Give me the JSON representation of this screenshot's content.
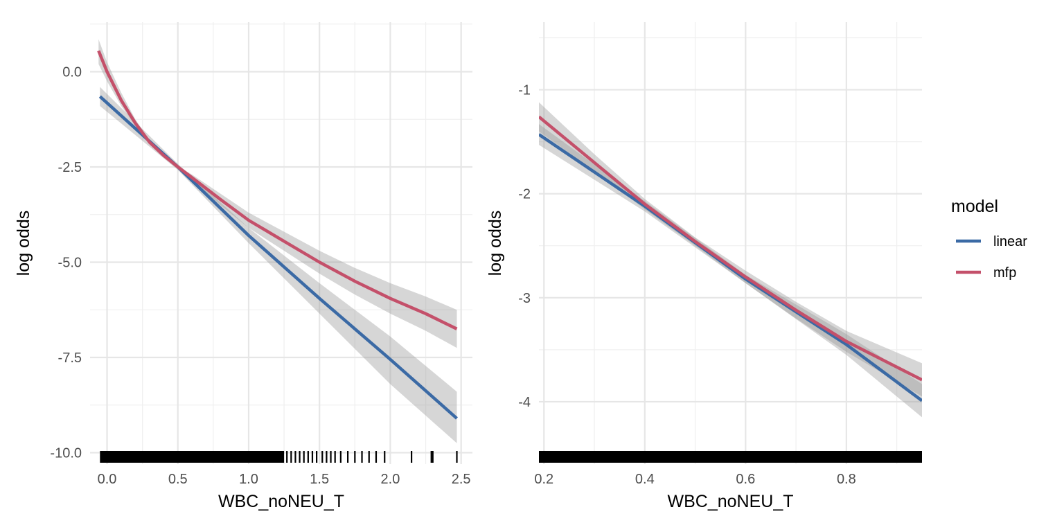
{
  "colors": {
    "linear": "#3b6aa5",
    "mfp": "#c4506a",
    "ribbon": "#999999",
    "rug": "#000000"
  },
  "legend": {
    "title": "model",
    "items": [
      {
        "label": "linear",
        "color": "#3b6aa5"
      },
      {
        "label": "mfp",
        "color": "#c4506a"
      }
    ]
  },
  "chart_data": [
    {
      "type": "line",
      "title": "",
      "xlabel": "WBC_noNEU_T",
      "ylabel": "log odds",
      "xlim": [
        -0.12,
        2.58
      ],
      "ylim": [
        -10.3,
        1.3
      ],
      "xticks": [
        0.0,
        0.5,
        1.0,
        1.5,
        2.0,
        2.5
      ],
      "xtick_labels": [
        "0.0",
        "0.5",
        "1.0",
        "1.5",
        "2.0",
        "2.5"
      ],
      "yticks": [
        0.0,
        -2.5,
        -5.0,
        -7.5,
        -10.0
      ],
      "ytick_labels": [
        "0.0",
        "-2.5",
        "-5.0",
        "-7.5",
        "-10.0"
      ],
      "grid": true,
      "series": [
        {
          "name": "linear",
          "color": "#3b6aa5",
          "points": [
            [
              -0.05,
              -0.65
            ],
            [
              0.5,
              -2.5
            ],
            [
              1.0,
              -4.3
            ],
            [
              1.5,
              -5.95
            ],
            [
              2.0,
              -7.55
            ],
            [
              2.47,
              -9.1
            ]
          ],
          "lower": [
            [
              -0.05,
              -0.9
            ],
            [
              0.5,
              -2.58
            ],
            [
              1.0,
              -4.5
            ],
            [
              1.5,
              -6.35
            ],
            [
              2.0,
              -8.2
            ],
            [
              2.47,
              -9.75
            ]
          ],
          "upper": [
            [
              -0.05,
              -0.4
            ],
            [
              0.5,
              -2.42
            ],
            [
              1.0,
              -4.1
            ],
            [
              1.5,
              -5.55
            ],
            [
              2.0,
              -6.95
            ],
            [
              2.47,
              -8.4
            ]
          ]
        },
        {
          "name": "mfp",
          "color": "#c4506a",
          "points": [
            [
              -0.06,
              0.55
            ],
            [
              0.0,
              0.0
            ],
            [
              0.1,
              -0.75
            ],
            [
              0.2,
              -1.35
            ],
            [
              0.3,
              -1.85
            ],
            [
              0.4,
              -2.2
            ],
            [
              0.5,
              -2.5
            ],
            [
              0.6,
              -2.78
            ],
            [
              0.8,
              -3.35
            ],
            [
              1.0,
              -3.9
            ],
            [
              1.25,
              -4.45
            ],
            [
              1.5,
              -5.0
            ],
            [
              1.75,
              -5.5
            ],
            [
              2.0,
              -5.95
            ],
            [
              2.25,
              -6.35
            ],
            [
              2.47,
              -6.75
            ]
          ],
          "lower": [
            [
              -0.06,
              0.2
            ],
            [
              0.0,
              -0.25
            ],
            [
              0.1,
              -0.9
            ],
            [
              0.2,
              -1.42
            ],
            [
              0.3,
              -1.88
            ],
            [
              0.4,
              -2.22
            ],
            [
              0.5,
              -2.52
            ],
            [
              0.6,
              -2.86
            ],
            [
              0.8,
              -3.5
            ],
            [
              1.0,
              -4.1
            ],
            [
              1.25,
              -4.7
            ],
            [
              1.5,
              -5.3
            ],
            [
              1.75,
              -5.85
            ],
            [
              2.0,
              -6.35
            ],
            [
              2.25,
              -6.8
            ],
            [
              2.47,
              -7.25
            ]
          ],
          "upper": [
            [
              -0.06,
              0.85
            ],
            [
              0.0,
              0.25
            ],
            [
              0.1,
              -0.55
            ],
            [
              0.2,
              -1.25
            ],
            [
              0.3,
              -1.8
            ],
            [
              0.4,
              -2.18
            ],
            [
              0.5,
              -2.48
            ],
            [
              0.6,
              -2.7
            ],
            [
              0.8,
              -3.2
            ],
            [
              1.0,
              -3.7
            ],
            [
              1.25,
              -4.2
            ],
            [
              1.5,
              -4.7
            ],
            [
              1.75,
              -5.15
            ],
            [
              2.0,
              -5.55
            ],
            [
              2.25,
              -5.9
            ],
            [
              2.47,
              -6.25
            ]
          ]
        }
      ],
      "rug": {
        "dense_from": -0.05,
        "dense_to": 1.25,
        "values": [
          1.27,
          1.3,
          1.33,
          1.36,
          1.39,
          1.42,
          1.45,
          1.48,
          1.52,
          1.55,
          1.58,
          1.61,
          1.65,
          1.7,
          1.75,
          1.8,
          1.85,
          1.9,
          1.96,
          2.15,
          2.29,
          2.3,
          2.47
        ]
      }
    },
    {
      "type": "line",
      "title": "",
      "xlabel": "WBC_noNEU_T",
      "ylabel": "log odds",
      "xlim": [
        0.19,
        0.95
      ],
      "ylim": [
        -4.6,
        -0.35
      ],
      "xticks": [
        0.2,
        0.4,
        0.6,
        0.8
      ],
      "xtick_labels": [
        "0.2",
        "0.4",
        "0.6",
        "0.8"
      ],
      "yticks": [
        -1,
        -2,
        -3,
        -4
      ],
      "ytick_labels": [
        "-1",
        "-2",
        "-3",
        "-4"
      ],
      "grid": true,
      "series": [
        {
          "name": "linear",
          "color": "#3b6aa5",
          "points": [
            [
              0.19,
              -1.43
            ],
            [
              0.4,
              -2.12
            ],
            [
              0.6,
              -2.82
            ],
            [
              0.8,
              -3.45
            ],
            [
              0.95,
              -3.99
            ]
          ],
          "lower": [
            [
              0.19,
              -1.53
            ],
            [
              0.4,
              -2.17
            ],
            [
              0.6,
              -2.86
            ],
            [
              0.8,
              -3.55
            ],
            [
              0.95,
              -4.15
            ]
          ],
          "upper": [
            [
              0.19,
              -1.33
            ],
            [
              0.4,
              -2.07
            ],
            [
              0.6,
              -2.78
            ],
            [
              0.8,
              -3.35
            ],
            [
              0.95,
              -3.83
            ]
          ]
        },
        {
          "name": "mfp",
          "color": "#c4506a",
          "points": [
            [
              0.19,
              -1.26
            ],
            [
              0.3,
              -1.7
            ],
            [
              0.4,
              -2.1
            ],
            [
              0.5,
              -2.46
            ],
            [
              0.6,
              -2.8
            ],
            [
              0.7,
              -3.12
            ],
            [
              0.8,
              -3.42
            ],
            [
              0.95,
              -3.79
            ]
          ],
          "lower": [
            [
              0.19,
              -1.4
            ],
            [
              0.3,
              -1.78
            ],
            [
              0.4,
              -2.15
            ],
            [
              0.5,
              -2.5
            ],
            [
              0.6,
              -2.86
            ],
            [
              0.7,
              -3.2
            ],
            [
              0.8,
              -3.52
            ],
            [
              0.95,
              -3.95
            ]
          ],
          "upper": [
            [
              0.19,
              -1.12
            ],
            [
              0.3,
              -1.62
            ],
            [
              0.4,
              -2.05
            ],
            [
              0.5,
              -2.42
            ],
            [
              0.6,
              -2.74
            ],
            [
              0.7,
              -3.04
            ],
            [
              0.8,
              -3.32
            ],
            [
              0.95,
              -3.63
            ]
          ]
        }
      ],
      "rug": {
        "dense_from": 0.19,
        "dense_to": 0.95,
        "values": []
      }
    }
  ]
}
